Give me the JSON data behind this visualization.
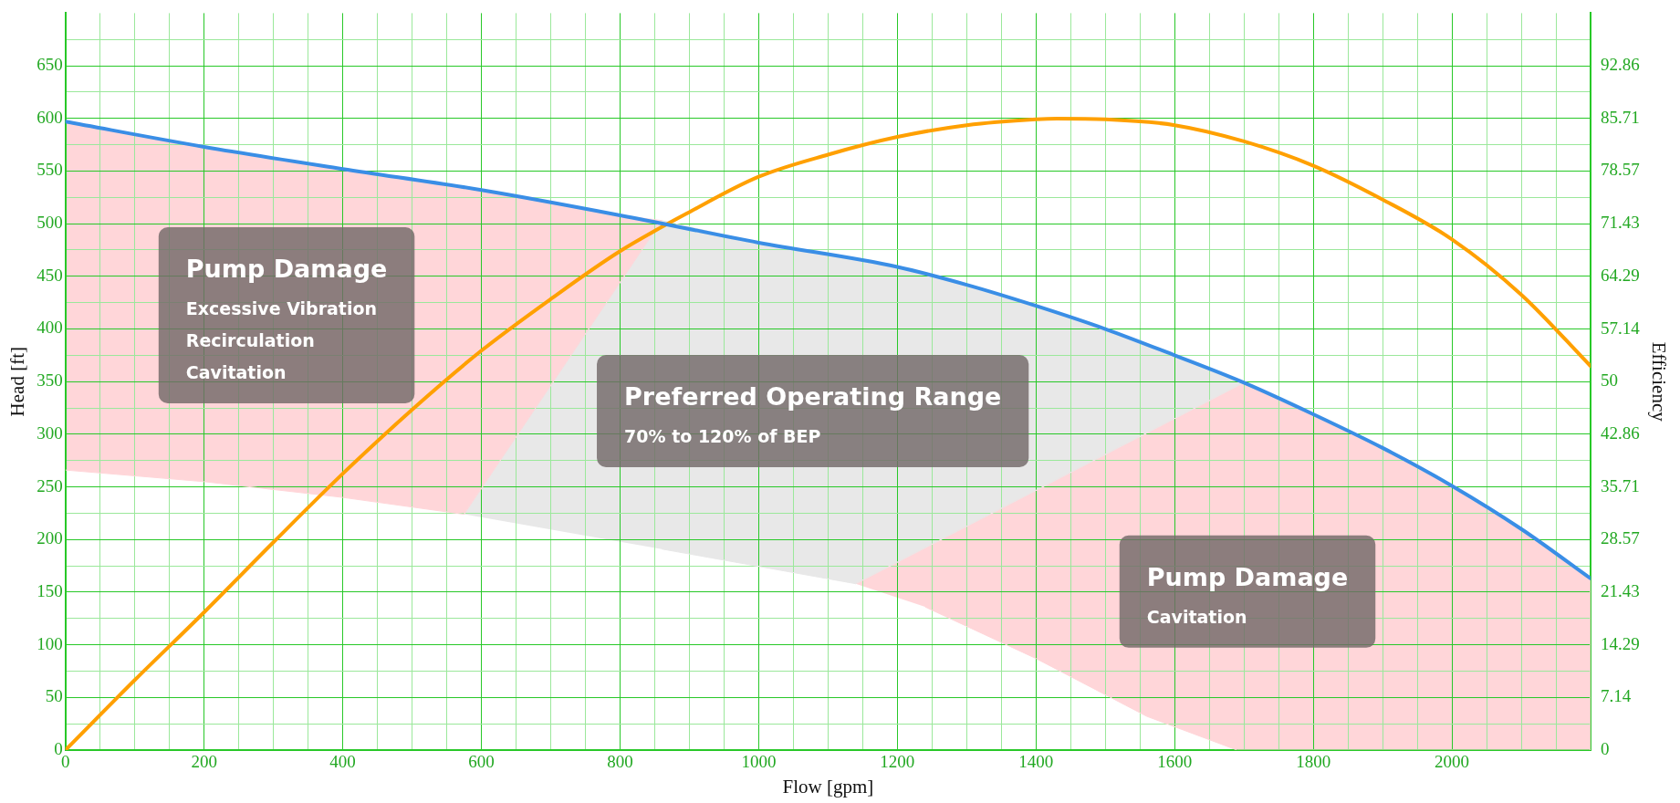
{
  "chart_data": {
    "type": "line",
    "xlabel": "Flow [gpm]",
    "ylabel": "Head [ft]",
    "y2label": "Efficiency",
    "xlim": [
      0,
      2200
    ],
    "xticks": [
      0,
      {
        "value": 50,
        "label": null
      },
      {
        "value": 100,
        "label": null
      },
      {
        "value": 150,
        "label": null
      },
      200,
      {
        "value": 250,
        "label": null
      },
      {
        "value": 300,
        "label": null
      },
      {
        "value": 350,
        "label": null
      },
      400,
      {
        "value": 450,
        "label": null
      },
      {
        "value": 500,
        "label": null
      },
      {
        "value": 550,
        "label": null
      },
      600,
      {
        "value": 650,
        "label": null
      },
      {
        "value": 700,
        "label": null
      },
      {
        "value": 750,
        "label": null
      },
      800,
      {
        "value": 850,
        "label": null
      },
      {
        "value": 900,
        "label": null
      },
      {
        "value": 950,
        "label": null
      },
      1000,
      {
        "value": 1050,
        "label": null
      },
      {
        "value": 1100,
        "label": null
      },
      {
        "value": 1150,
        "label": null
      },
      1200,
      {
        "value": 1250,
        "label": null
      },
      {
        "value": 1300,
        "label": null
      },
      {
        "value": 1350,
        "label": null
      },
      1400,
      {
        "value": 1450,
        "label": null
      },
      {
        "value": 1500,
        "label": null
      },
      {
        "value": 1550,
        "label": null
      },
      1600,
      {
        "value": 1650,
        "label": null
      },
      {
        "value": 1700,
        "label": null
      },
      {
        "value": 1750,
        "label": null
      },
      1800,
      {
        "value": 1850,
        "label": null
      },
      {
        "value": 1900,
        "label": null
      },
      {
        "value": 1950,
        "label": null
      },
      2000,
      {
        "value": 2050,
        "label": null
      },
      {
        "value": 2100,
        "label": null
      },
      {
        "value": 2150,
        "label": null
      }
    ],
    "ylim": [
      0,
      700
    ],
    "yticks": [
      0,
      {
        "value": 25,
        "label": null
      },
      50,
      {
        "value": 75,
        "label": null
      },
      100,
      {
        "value": 125,
        "label": null
      },
      150,
      {
        "value": 175,
        "label": null
      },
      200,
      {
        "value": 225,
        "label": null
      },
      250,
      {
        "value": 275,
        "label": null
      },
      300,
      {
        "value": 325,
        "label": null
      },
      350,
      {
        "value": 375,
        "label": null
      },
      400,
      {
        "value": 425,
        "label": null
      },
      450,
      {
        "value": 475,
        "label": null
      },
      500,
      {
        "value": 525,
        "label": null
      },
      550,
      {
        "value": 575,
        "label": null
      },
      600,
      {
        "value": 625,
        "label": null
      },
      650,
      {
        "value": 675,
        "label": null
      }
    ],
    "y2lim": [
      0,
      100
    ],
    "y2ticks": [
      0,
      7.14,
      14.29,
      21.43,
      28.57,
      35.71,
      42.86,
      50,
      57.14,
      64.29,
      71.43,
      78.57,
      85.71,
      92.86
    ],
    "grid": true,
    "marker": "none",
    "line_style": "solid",
    "series": [
      {
        "type": "area",
        "color": "#ffd6d9",
        "x": [
          0,
          200,
          400,
          600,
          800,
          860,
          575,
          400,
          200,
          0
        ],
        "values": [
          597,
          573,
          552,
          532,
          508,
          503,
          224,
          240,
          255,
          266
        ]
      },
      {
        "type": "area",
        "color": "#e8e8e8",
        "x": [
          575,
          860,
          1000,
          1200,
          1400,
          1600,
          1700,
          1140,
          860
        ],
        "values": [
          224,
          503,
          482,
          459,
          422,
          375,
          349,
          158,
          191
        ]
      },
      {
        "type": "area",
        "color": "#ffd6d9",
        "x": [
          1140,
          1700,
          1800,
          1900,
          2000,
          2100,
          2200,
          2200,
          1690,
          1560,
          1400,
          1240
        ],
        "values": [
          158,
          349,
          319,
          287,
          251,
          210,
          163,
          0,
          0,
          32,
          87,
          136
        ]
      },
      {
        "type": "line",
        "color": "#3a8ee6",
        "x": [
          0,
          200,
          400,
          600,
          800,
          1000,
          1200,
          1300,
          1400,
          1500,
          1600,
          1700,
          1800,
          1900,
          2000,
          2100,
          2200
        ],
        "values": [
          597,
          573,
          552,
          532,
          508,
          482,
          459,
          442,
          422,
          400,
          375,
          349,
          319,
          287,
          251,
          210,
          163
        ]
      },
      {
        "type": "line",
        "axis": "y2",
        "color": "#ffa000",
        "x": [
          0,
          100,
          200,
          300,
          400,
          500,
          600,
          700,
          800,
          900,
          1000,
          1100,
          1200,
          1300,
          1400,
          1430,
          1500,
          1600,
          1700,
          1800,
          1900,
          2000,
          2100,
          2200
        ],
        "values": [
          0,
          9.5,
          18.7,
          28.2,
          37.5,
          46.2,
          54.2,
          61.2,
          67.7,
          73,
          77.8,
          80.8,
          83.2,
          84.8,
          85.6,
          85.7,
          85.6,
          84.8,
          82.6,
          79.3,
          74.7,
          69.3,
          61.8,
          52.1
        ]
      }
    ],
    "annotations": [
      "Pump Damage\nExcessive Vibration\nRecirculation\nCavitation",
      "Preferred Operating Range\n70% to 120% of BEP",
      "Pump Damage\nCavitation"
    ]
  }
}
